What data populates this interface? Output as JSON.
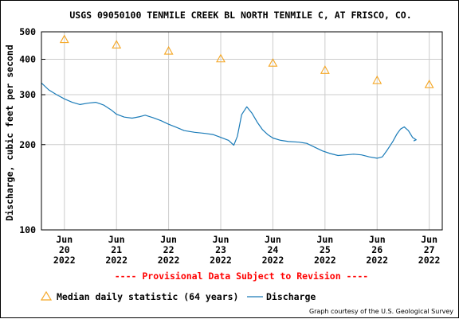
{
  "chart_data": {
    "type": "line",
    "title": "USGS 09050100 TENMILE CREEK BL NORTH TENMILE C, AT FRISCO, CO.",
    "ylabel": "Discharge, cubic feet per second",
    "xlabel": "",
    "yscale": "log",
    "ylim": [
      100,
      500
    ],
    "xlim": [
      19.56,
      27.25
    ],
    "y_ticks": [
      100,
      200,
      300,
      400,
      500
    ],
    "y_tick_labels": [
      "100",
      "200",
      "300",
      "400",
      "500"
    ],
    "x_ticks": [
      {
        "month": "Jun",
        "day": "20",
        "year": "2022",
        "x": 20.0
      },
      {
        "month": "Jun",
        "day": "21",
        "year": "2022",
        "x": 21.0
      },
      {
        "month": "Jun",
        "day": "22",
        "year": "2022",
        "x": 22.0
      },
      {
        "month": "Jun",
        "day": "23",
        "year": "2022",
        "x": 23.0
      },
      {
        "month": "Jun",
        "day": "24",
        "year": "2022",
        "x": 24.0
      },
      {
        "month": "Jun",
        "day": "25",
        "year": "2022",
        "x": 25.0
      },
      {
        "month": "Jun",
        "day": "26",
        "year": "2022",
        "x": 26.0
      },
      {
        "month": "Jun",
        "day": "27",
        "year": "2022",
        "x": 27.0
      }
    ],
    "grid": true,
    "series": [
      {
        "name": "Median daily statistic (64 years)",
        "kind": "markers",
        "marker": "triangle",
        "color": "#f5a623",
        "points": [
          {
            "x": 20.0,
            "y": 470
          },
          {
            "x": 21.0,
            "y": 450
          },
          {
            "x": 22.0,
            "y": 428
          },
          {
            "x": 23.0,
            "y": 402
          },
          {
            "x": 24.0,
            "y": 388
          },
          {
            "x": 25.0,
            "y": 366
          },
          {
            "x": 26.0,
            "y": 337
          },
          {
            "x": 27.0,
            "y": 326
          }
        ]
      },
      {
        "name": "Discharge",
        "kind": "line",
        "color": "#1a7bb8",
        "points": [
          {
            "x": 19.56,
            "y": 330
          },
          {
            "x": 19.7,
            "y": 312
          },
          {
            "x": 19.85,
            "y": 300
          },
          {
            "x": 20.0,
            "y": 290
          },
          {
            "x": 20.15,
            "y": 282
          },
          {
            "x": 20.3,
            "y": 277
          },
          {
            "x": 20.45,
            "y": 280
          },
          {
            "x": 20.6,
            "y": 282
          },
          {
            "x": 20.75,
            "y": 276
          },
          {
            "x": 20.9,
            "y": 265
          },
          {
            "x": 21.0,
            "y": 256
          },
          {
            "x": 21.15,
            "y": 250
          },
          {
            "x": 21.3,
            "y": 248
          },
          {
            "x": 21.45,
            "y": 251
          },
          {
            "x": 21.55,
            "y": 254
          },
          {
            "x": 21.7,
            "y": 249
          },
          {
            "x": 21.85,
            "y": 243
          },
          {
            "x": 22.0,
            "y": 236
          },
          {
            "x": 22.15,
            "y": 230
          },
          {
            "x": 22.3,
            "y": 224
          },
          {
            "x": 22.5,
            "y": 221
          },
          {
            "x": 22.7,
            "y": 219
          },
          {
            "x": 22.85,
            "y": 217
          },
          {
            "x": 23.0,
            "y": 212
          },
          {
            "x": 23.15,
            "y": 207
          },
          {
            "x": 23.25,
            "y": 199
          },
          {
            "x": 23.32,
            "y": 214
          },
          {
            "x": 23.4,
            "y": 255
          },
          {
            "x": 23.5,
            "y": 272
          },
          {
            "x": 23.6,
            "y": 258
          },
          {
            "x": 23.7,
            "y": 240
          },
          {
            "x": 23.8,
            "y": 226
          },
          {
            "x": 23.9,
            "y": 217
          },
          {
            "x": 24.0,
            "y": 211
          },
          {
            "x": 24.15,
            "y": 207
          },
          {
            "x": 24.3,
            "y": 205
          },
          {
            "x": 24.5,
            "y": 204
          },
          {
            "x": 24.65,
            "y": 202
          },
          {
            "x": 24.8,
            "y": 196
          },
          {
            "x": 24.95,
            "y": 190
          },
          {
            "x": 25.1,
            "y": 186
          },
          {
            "x": 25.25,
            "y": 183
          },
          {
            "x": 25.4,
            "y": 184
          },
          {
            "x": 25.55,
            "y": 185
          },
          {
            "x": 25.7,
            "y": 184
          },
          {
            "x": 25.85,
            "y": 181
          },
          {
            "x": 26.0,
            "y": 179
          },
          {
            "x": 26.1,
            "y": 181
          },
          {
            "x": 26.2,
            "y": 192
          },
          {
            "x": 26.3,
            "y": 205
          },
          {
            "x": 26.38,
            "y": 218
          },
          {
            "x": 26.45,
            "y": 227
          },
          {
            "x": 26.52,
            "y": 231
          },
          {
            "x": 26.6,
            "y": 224
          },
          {
            "x": 26.68,
            "y": 212
          },
          {
            "x": 26.75,
            "y": 208
          },
          {
            "x": 26.7,
            "y": 206
          }
        ]
      }
    ],
    "legend_placement": "bottom",
    "legend": [
      {
        "label": "Median daily statistic (64 years)",
        "marker": "triangle"
      },
      {
        "label": "Discharge",
        "marker": "line"
      }
    ],
    "annotation": "---- Provisional Data Subject to Revision ----",
    "credit": "Graph courtesy of the U.S. Geological Survey"
  },
  "colors": {
    "grid": "#cccccc",
    "triangle": "#f5a623",
    "discharge": "#1a7bb8",
    "provisional": "#ff0000"
  }
}
